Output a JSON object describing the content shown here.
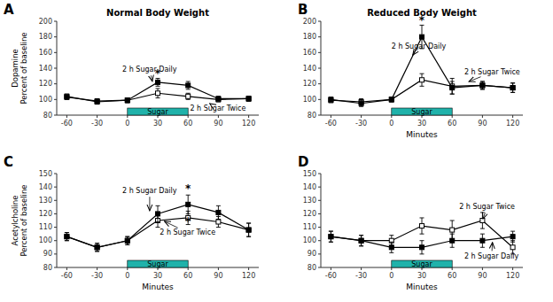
{
  "chart_data": [
    {
      "type": "line",
      "panel_label": "A",
      "title": "Normal Body Weight",
      "y_label": "Dopamine\nPercent of baseline",
      "x": [
        -60,
        -30,
        0,
        30,
        60,
        90,
        120
      ],
      "xlim": [
        -70,
        130
      ],
      "xticks": [
        -60,
        -30,
        0,
        30,
        60,
        90,
        120
      ],
      "ylim": [
        80,
        200
      ],
      "yticks": [
        80,
        100,
        120,
        140,
        160,
        180,
        200
      ],
      "grid": false,
      "series": [
        {
          "color": "#000000",
          "marker": "square-open",
          "line_style": "solid",
          "values": [
            104,
            97,
            99,
            108,
            104,
            100,
            101
          ],
          "errors": [
            3,
            3,
            3,
            6,
            4,
            3,
            3
          ]
        },
        {
          "color": "#000000",
          "marker": "square",
          "line_style": "solid",
          "values": [
            103,
            98,
            99,
            122,
            118,
            101,
            101
          ],
          "errors": [
            3,
            3,
            3,
            5,
            5,
            3,
            3
          ]
        }
      ],
      "spans": [
        {
          "label": "Sugar",
          "x0": 0,
          "x1": 60,
          "color": "#20B2AA"
        }
      ],
      "annotations": [
        {
          "text": "*",
          "x": 30,
          "y": 129
        },
        {
          "text": "2 h Sugar Daily",
          "x": 25,
          "y": 121,
          "text_x": -5,
          "text_y": 138
        },
        {
          "text": "2 h Sugar Twice",
          "x": 80,
          "y": 96,
          "text_x": 62,
          "text_y": 88
        }
      ]
    },
    {
      "type": "line",
      "panel_label": "B",
      "title": "Reduced Body Weight",
      "x_label": "Minutes",
      "x": [
        -60,
        -30,
        0,
        30,
        60,
        90,
        120
      ],
      "xlim": [
        -70,
        130
      ],
      "xticks": [
        -60,
        -30,
        0,
        30,
        60,
        90,
        120
      ],
      "ylim": [
        80,
        200
      ],
      "yticks": [
        80,
        100,
        120,
        140,
        160,
        180,
        200
      ],
      "grid": false,
      "series": [
        {
          "color": "#000000",
          "marker": "square-open",
          "line_style": "solid",
          "values": [
            99,
            97,
            100,
            125,
            117,
            118,
            115
          ],
          "errors": [
            3,
            4,
            3,
            8,
            10,
            5,
            6
          ]
        },
        {
          "color": "#000000",
          "marker": "square",
          "line_style": "solid",
          "values": [
            100,
            95,
            100,
            180,
            115,
            118,
            115
          ],
          "errors": [
            3,
            4,
            3,
            15,
            8,
            5,
            6
          ]
        }
      ],
      "spans": [
        {
          "label": "Sugar",
          "x0": 0,
          "x1": 60,
          "color": "#20B2AA"
        }
      ],
      "annotations": [
        {
          "text": "*",
          "x": 30,
          "y": 197
        },
        {
          "text": "2 h Sugar Daily",
          "x": 20,
          "y": 155,
          "text_x": 0,
          "text_y": 168
        },
        {
          "text": "2 h Sugar Twice",
          "x": 75,
          "y": 122,
          "text_x": 72,
          "text_y": 135
        }
      ]
    },
    {
      "type": "line",
      "panel_label": "C",
      "x_label": "Minutes",
      "y_label": "Acetylcholine\nPercent of baseline",
      "x": [
        -60,
        -30,
        0,
        30,
        60,
        90,
        120
      ],
      "xlim": [
        -70,
        130
      ],
      "xticks": [
        -60,
        -30,
        0,
        30,
        60,
        90,
        120
      ],
      "ylim": [
        80,
        150
      ],
      "yticks": [
        80,
        90,
        100,
        110,
        120,
        130,
        140,
        150
      ],
      "grid": false,
      "series": [
        {
          "color": "#000000",
          "marker": "square-open",
          "line_style": "solid",
          "values": [
            103,
            95,
            100,
            115,
            117,
            114,
            108
          ],
          "errors": [
            3,
            3,
            3,
            5,
            5,
            4,
            5
          ]
        },
        {
          "color": "#000000",
          "marker": "square",
          "line_style": "solid",
          "values": [
            103,
            95,
            100,
            120,
            127,
            121,
            108
          ],
          "errors": [
            3,
            3,
            3,
            6,
            7,
            5,
            5
          ]
        }
      ],
      "spans": [
        {
          "label": "Sugar",
          "x0": 0,
          "x1": 60,
          "color": "#20B2AA"
        }
      ],
      "annotations": [
        {
          "text": "*",
          "x": 60,
          "y": 136
        },
        {
          "text": "*",
          "x": 60,
          "y": 112
        },
        {
          "text": "2 h Sugar Daily",
          "x": 22,
          "y": 121,
          "text_x": -5,
          "text_y": 137
        },
        {
          "text": "2 h Sugar Twice",
          "x": 35,
          "y": 115,
          "text_x": 32,
          "text_y": 106
        }
      ]
    },
    {
      "type": "line",
      "panel_label": "D",
      "x_label": "Minutes",
      "x": [
        -60,
        -30,
        0,
        30,
        60,
        90,
        120
      ],
      "xlim": [
        -70,
        130
      ],
      "xticks": [
        -60,
        -30,
        0,
        30,
        60,
        90,
        120
      ],
      "ylim": [
        80,
        150
      ],
      "yticks": [
        80,
        90,
        100,
        110,
        120,
        130,
        140,
        150
      ],
      "grid": false,
      "series": [
        {
          "color": "#000000",
          "marker": "square-open",
          "line_style": "solid",
          "values": [
            103,
            100,
            100,
            111,
            108,
            115,
            95
          ],
          "errors": [
            4,
            4,
            4,
            6,
            7,
            6,
            5
          ]
        },
        {
          "color": "#000000",
          "marker": "square",
          "line_style": "solid",
          "values": [
            103,
            100,
            95,
            95,
            100,
            100,
            103
          ],
          "errors": [
            4,
            4,
            4,
            5,
            5,
            5,
            4
          ]
        }
      ],
      "spans": [
        {
          "label": "Sugar",
          "x0": 0,
          "x1": 60,
          "color": "#20B2AA"
        }
      ],
      "annotations": [
        {
          "text": "2 h Sugar Twice",
          "x": 90,
          "y": 115,
          "text_x": 67,
          "text_y": 125
        },
        {
          "text": "2 h Sugar Daily",
          "x": 100,
          "y": 100,
          "text_x": 72,
          "text_y": 88
        }
      ]
    }
  ]
}
